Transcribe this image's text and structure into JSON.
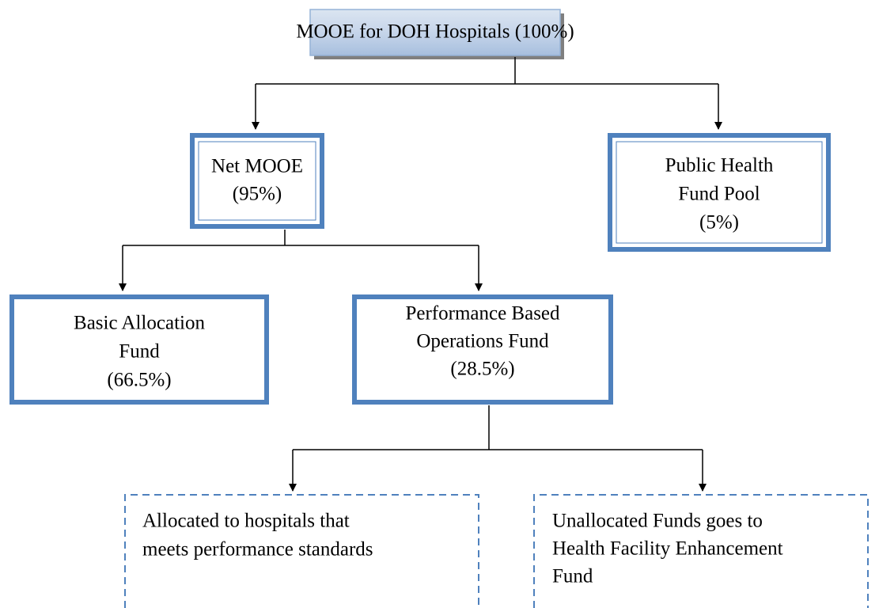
{
  "nodes": [
    {
      "label": [
        "MOOE for DOH Hospitals (100%)"
      ]
    },
    {
      "label": [
        "Net MOOE",
        "(95%)"
      ]
    },
    {
      "label": [
        "Public Health",
        "Fund Pool",
        "(5%)"
      ]
    },
    {
      "label": [
        "Basic Allocation",
        "Fund",
        "(66.5%)"
      ]
    },
    {
      "label": [
        "Performance Based",
        "Operations Fund",
        "(28.5%)"
      ]
    },
    {
      "label": [
        "Allocated to hospitals that",
        "meets performance standards"
      ]
    },
    {
      "label": [
        "Unallocated Funds goes to",
        "Health Facility Enhancement",
        "Fund"
      ]
    }
  ]
}
